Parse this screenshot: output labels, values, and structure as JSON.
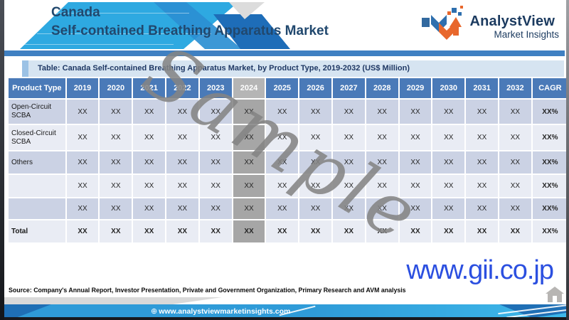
{
  "header": {
    "region": "Canada",
    "title": "Self-contained Breathing Apparatus Market"
  },
  "logo": {
    "name": "AnalystView",
    "tagline": "Market Insights"
  },
  "table": {
    "caption": "Table: Canada Self-contained Breathing Apparatus Market, by Product Type, 2019-2032 (US$ Million)",
    "columns": [
      "Product Type",
      "2019",
      "2020",
      "2021",
      "2022",
      "2023",
      "2024",
      "2025",
      "2026",
      "2027",
      "2028",
      "2029",
      "2030",
      "2031",
      "2032",
      "CAGR"
    ],
    "highlight_column": "2024",
    "rows": [
      {
        "label": "Open-Circuit SCBA",
        "values": [
          "XX",
          "XX",
          "XX",
          "XX",
          "XX",
          "XX",
          "XX",
          "XX",
          "XX",
          "XX",
          "XX",
          "XX",
          "XX",
          "XX"
        ],
        "cagr": "XX%",
        "bold": false
      },
      {
        "label": "Closed-Circuit SCBA",
        "values": [
          "XX",
          "XX",
          "XX",
          "XX",
          "XX",
          "XX",
          "XX",
          "XX",
          "XX",
          "XX",
          "XX",
          "XX",
          "XX",
          "XX"
        ],
        "cagr": "XX%",
        "bold": false
      },
      {
        "label": "Others",
        "values": [
          "XX",
          "XX",
          "XX",
          "XX",
          "XX",
          "XX",
          "XX",
          "XX",
          "XX",
          "XX",
          "XX",
          "XX",
          "XX",
          "XX"
        ],
        "cagr": "XX%",
        "bold": false
      },
      {
        "label": "",
        "values": [
          "XX",
          "XX",
          "XX",
          "XX",
          "XX",
          "XX",
          "XX",
          "XX",
          "XX",
          "XX",
          "XX",
          "XX",
          "XX",
          "XX"
        ],
        "cagr": "XX%",
        "bold": false
      },
      {
        "label": "",
        "values": [
          "XX",
          "XX",
          "XX",
          "XX",
          "XX",
          "XX",
          "XX",
          "XX",
          "XX",
          "XX",
          "XX",
          "XX",
          "XX",
          "XX"
        ],
        "cagr": "XX%",
        "bold": false
      },
      {
        "label": "Total",
        "values": [
          "XX",
          "XX",
          "XX",
          "XX",
          "XX",
          "XX",
          "XX",
          "XX",
          "XX",
          "XX",
          "XX",
          "XX",
          "XX",
          "XX"
        ],
        "cagr": "XX%",
        "bold": true
      }
    ]
  },
  "watermark": "Sample",
  "source": "Source: Company's Annual Report, Investor Presentation, Private and Government Organization, Primary Research and AVM analysis",
  "footer": {
    "website": "www.analystviewmarketinsights.com",
    "globe_icon": "⊕"
  },
  "overlay": {
    "gii_url": "www.gii.co.jp"
  },
  "colors": {
    "accent_azure": "#2ea9e1",
    "table_header_blue": "#4a7ab8",
    "row_dark": "#cbd2e4",
    "row_light": "#e9ecf4",
    "highlight_gray": "#a6a6a6",
    "brand_navy": "#1b3a5f",
    "brand_orange": "#e8672c",
    "gii_blue": "#2b4fe0"
  }
}
